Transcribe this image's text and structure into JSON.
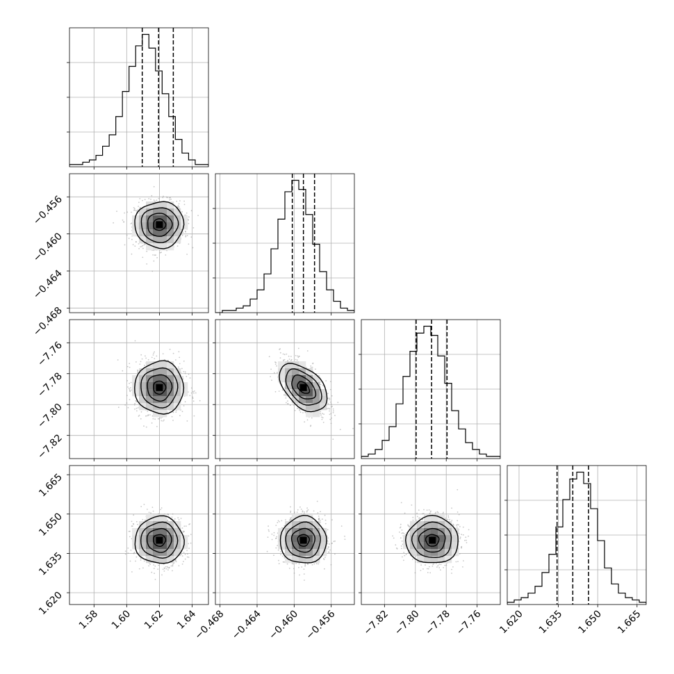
{
  "chart_data": {
    "type": "corner",
    "title": "",
    "grid": true,
    "parameters": [
      {
        "range": [
          1.565,
          1.65
        ],
        "ticks": [
          "1.58",
          "1.60",
          "1.62",
          "1.64"
        ],
        "tick_values": [
          1.58,
          1.6,
          1.62,
          1.64
        ],
        "mean": 1.62,
        "sigma": 0.0075,
        "quantiles": [
          1.6095,
          1.6195,
          1.6285
        ]
      },
      {
        "range": [
          -0.4685,
          -0.4535
        ],
        "ticks": [
          "−0.468",
          "−0.464",
          "−0.460",
          "−0.456"
        ],
        "tick_values": [
          -0.468,
          -0.464,
          -0.46,
          -0.456
        ],
        "mean": -0.459,
        "sigma": 0.00125,
        "quantiles": [
          -0.4602,
          -0.459,
          -0.4578
        ]
      },
      {
        "range": [
          -7.835,
          -7.745
        ],
        "ticks": [
          "−7.82",
          "−7.80",
          "−7.78",
          "−7.76"
        ],
        "tick_values": [
          -7.82,
          -7.8,
          -7.78,
          -7.76
        ],
        "mean": -7.789,
        "sigma": 0.0085,
        "quantiles": [
          -7.7995,
          -7.7895,
          -7.7795
        ]
      },
      {
        "range": [
          1.6155,
          1.6685
        ],
        "ticks": [
          "1.620",
          "1.635",
          "1.650",
          "1.665"
        ],
        "tick_values": [
          1.62,
          1.635,
          1.65,
          1.665
        ],
        "mean": 1.64,
        "sigma": 0.0045,
        "quantiles": [
          1.6345,
          1.6405,
          1.6465
        ]
      }
    ],
    "histograms": [
      [
        1,
        1,
        2,
        3,
        5,
        9,
        14,
        22,
        33,
        44,
        53,
        58,
        52,
        42,
        32,
        22,
        12,
        6,
        3,
        1,
        1
      ],
      [
        0,
        1,
        1,
        2,
        3,
        6,
        10,
        17,
        28,
        41,
        53,
        58,
        54,
        43,
        30,
        18,
        10,
        5,
        2,
        1
      ],
      [
        1,
        2,
        4,
        8,
        14,
        24,
        36,
        47,
        55,
        58,
        54,
        45,
        33,
        21,
        13,
        7,
        4,
        2,
        1,
        1
      ],
      [
        1,
        2,
        3,
        5,
        8,
        14,
        22,
        34,
        46,
        55,
        58,
        53,
        42,
        28,
        16,
        9,
        5,
        3,
        2,
        1
      ]
    ],
    "correlations": {
      "1-0": 0.0,
      "2-0": 0.0,
      "2-1": -0.55,
      "3-0": 0.0,
      "3-1": 0.0,
      "3-2": 0.0
    }
  }
}
